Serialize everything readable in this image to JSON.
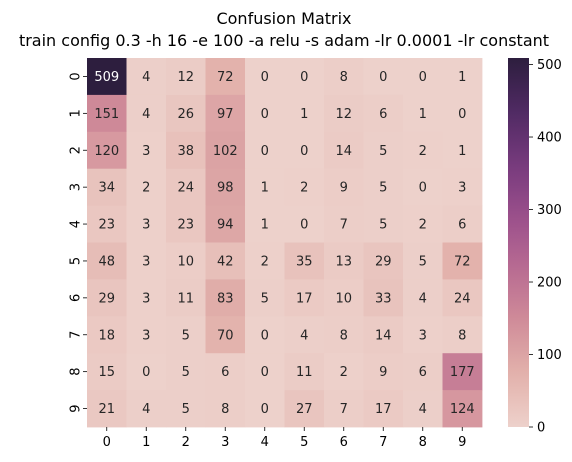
{
  "chart_data": {
    "type": "heatmap",
    "title": "Confusion Matrix",
    "subtitle": "train config 0.3 -h 16 -e 100 -a relu -s adam -lr 0.0001 -lr constant",
    "x_categories": [
      "0",
      "1",
      "2",
      "3",
      "4",
      "5",
      "6",
      "7",
      "8",
      "9"
    ],
    "y_categories": [
      "0",
      "1",
      "2",
      "3",
      "4",
      "5",
      "6",
      "7",
      "8",
      "9"
    ],
    "values": [
      [
        509,
        4,
        12,
        72,
        0,
        0,
        8,
        0,
        0,
        1
      ],
      [
        151,
        4,
        26,
        97,
        0,
        1,
        12,
        6,
        1,
        0
      ],
      [
        120,
        3,
        38,
        102,
        0,
        0,
        14,
        5,
        2,
        1
      ],
      [
        34,
        2,
        24,
        98,
        1,
        2,
        9,
        5,
        0,
        3
      ],
      [
        23,
        3,
        23,
        94,
        1,
        0,
        7,
        5,
        2,
        6
      ],
      [
        48,
        3,
        10,
        42,
        2,
        35,
        13,
        29,
        5,
        72
      ],
      [
        29,
        3,
        11,
        83,
        5,
        17,
        10,
        33,
        4,
        24
      ],
      [
        18,
        3,
        5,
        70,
        0,
        4,
        8,
        14,
        3,
        8
      ],
      [
        15,
        0,
        5,
        6,
        0,
        11,
        2,
        9,
        6,
        177
      ],
      [
        21,
        4,
        5,
        8,
        0,
        27,
        7,
        17,
        4,
        124
      ]
    ],
    "vmin": 0,
    "vmax": 509,
    "colorbar_ticks": [
      0,
      100,
      200,
      300,
      400,
      500
    ],
    "colormap": [
      "#edd1cb",
      "#e3b2ac",
      "#d08c99",
      "#b86b92",
      "#9a4f8b",
      "#763a7c",
      "#4f2a63",
      "#2d1e3e"
    ],
    "text_light_color": "#ffffff",
    "text_dark_color": "#262626"
  }
}
